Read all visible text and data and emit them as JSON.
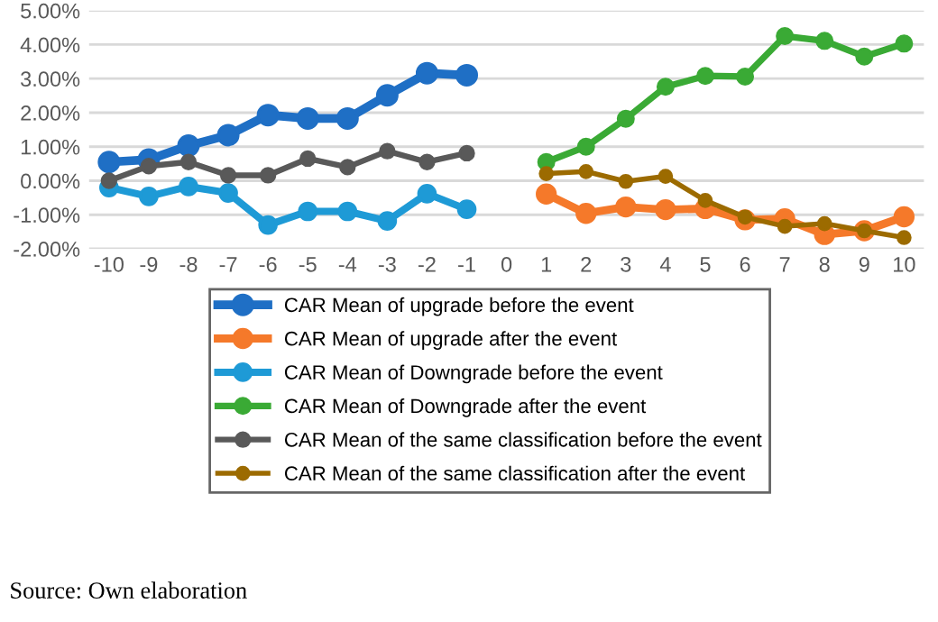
{
  "chart_data": {
    "type": "line",
    "categories": [
      "-10",
      "-9",
      "-8",
      "-7",
      "-6",
      "-5",
      "-4",
      "-3",
      "-2",
      "-1",
      "0",
      "1",
      "2",
      "3",
      "4",
      "5",
      "6",
      "7",
      "8",
      "9",
      "10"
    ],
    "ylim": [
      -2,
      5
    ],
    "yticks": [
      {
        "value": -2,
        "label": "-2.00%"
      },
      {
        "value": -1,
        "label": "-1.00%"
      },
      {
        "value": 0,
        "label": "0.00%"
      },
      {
        "value": 1,
        "label": "1.00%"
      },
      {
        "value": 2,
        "label": "2.00%"
      },
      {
        "value": 3,
        "label": "3.00%"
      },
      {
        "value": 4,
        "label": "4.00%"
      },
      {
        "value": 5,
        "label": "5.00%"
      }
    ],
    "grid": "y",
    "legend": "bottom",
    "marker": "circle",
    "line_style": "solid",
    "series": [
      {
        "name": "CAR Mean of upgrade before the event",
        "color": "#1f6fc5",
        "values": [
          0.55,
          0.62,
          1.03,
          1.34,
          1.93,
          1.83,
          1.83,
          2.51,
          3.16,
          3.1,
          null,
          null,
          null,
          null,
          null,
          null,
          null,
          null,
          null,
          null,
          null
        ]
      },
      {
        "name": "CAR Mean of upgrade after the event",
        "color": "#f5792a",
        "values": [
          null,
          null,
          null,
          null,
          null,
          null,
          null,
          null,
          null,
          null,
          null,
          -0.39,
          -0.96,
          -0.77,
          -0.85,
          -0.82,
          -1.15,
          -1.12,
          -1.58,
          -1.47,
          -1.06
        ]
      },
      {
        "name": "CAR Mean of Downgrade before the event",
        "color": "#1e9ad6",
        "values": [
          -0.2,
          -0.46,
          -0.17,
          -0.36,
          -1.3,
          -0.9,
          -0.9,
          -1.18,
          -0.38,
          -0.84,
          null,
          null,
          null,
          null,
          null,
          null,
          null,
          null,
          null,
          null,
          null
        ]
      },
      {
        "name": "CAR Mean of Downgrade after the event",
        "color": "#3aaa35",
        "values": [
          null,
          null,
          null,
          null,
          null,
          null,
          null,
          null,
          null,
          null,
          null,
          0.55,
          1.0,
          1.82,
          2.76,
          3.08,
          3.06,
          4.25,
          4.11,
          3.65,
          4.03
        ]
      },
      {
        "name": "CAR Mean of the same classification before the event",
        "color": "#595959",
        "values": [
          0.0,
          0.43,
          0.55,
          0.16,
          0.16,
          0.65,
          0.4,
          0.87,
          0.55,
          0.81,
          null,
          null,
          null,
          null,
          null,
          null,
          null,
          null,
          null,
          null,
          null
        ]
      },
      {
        "name": "CAR Mean of the same classification after the event",
        "color": "#9c6b00",
        "values": [
          null,
          null,
          null,
          null,
          null,
          null,
          null,
          null,
          null,
          null,
          null,
          0.21,
          0.27,
          -0.02,
          0.13,
          -0.58,
          -1.07,
          -1.34,
          -1.26,
          -1.47,
          -1.67
        ]
      }
    ],
    "annotations": [
      "Source: Own elaboration"
    ]
  }
}
